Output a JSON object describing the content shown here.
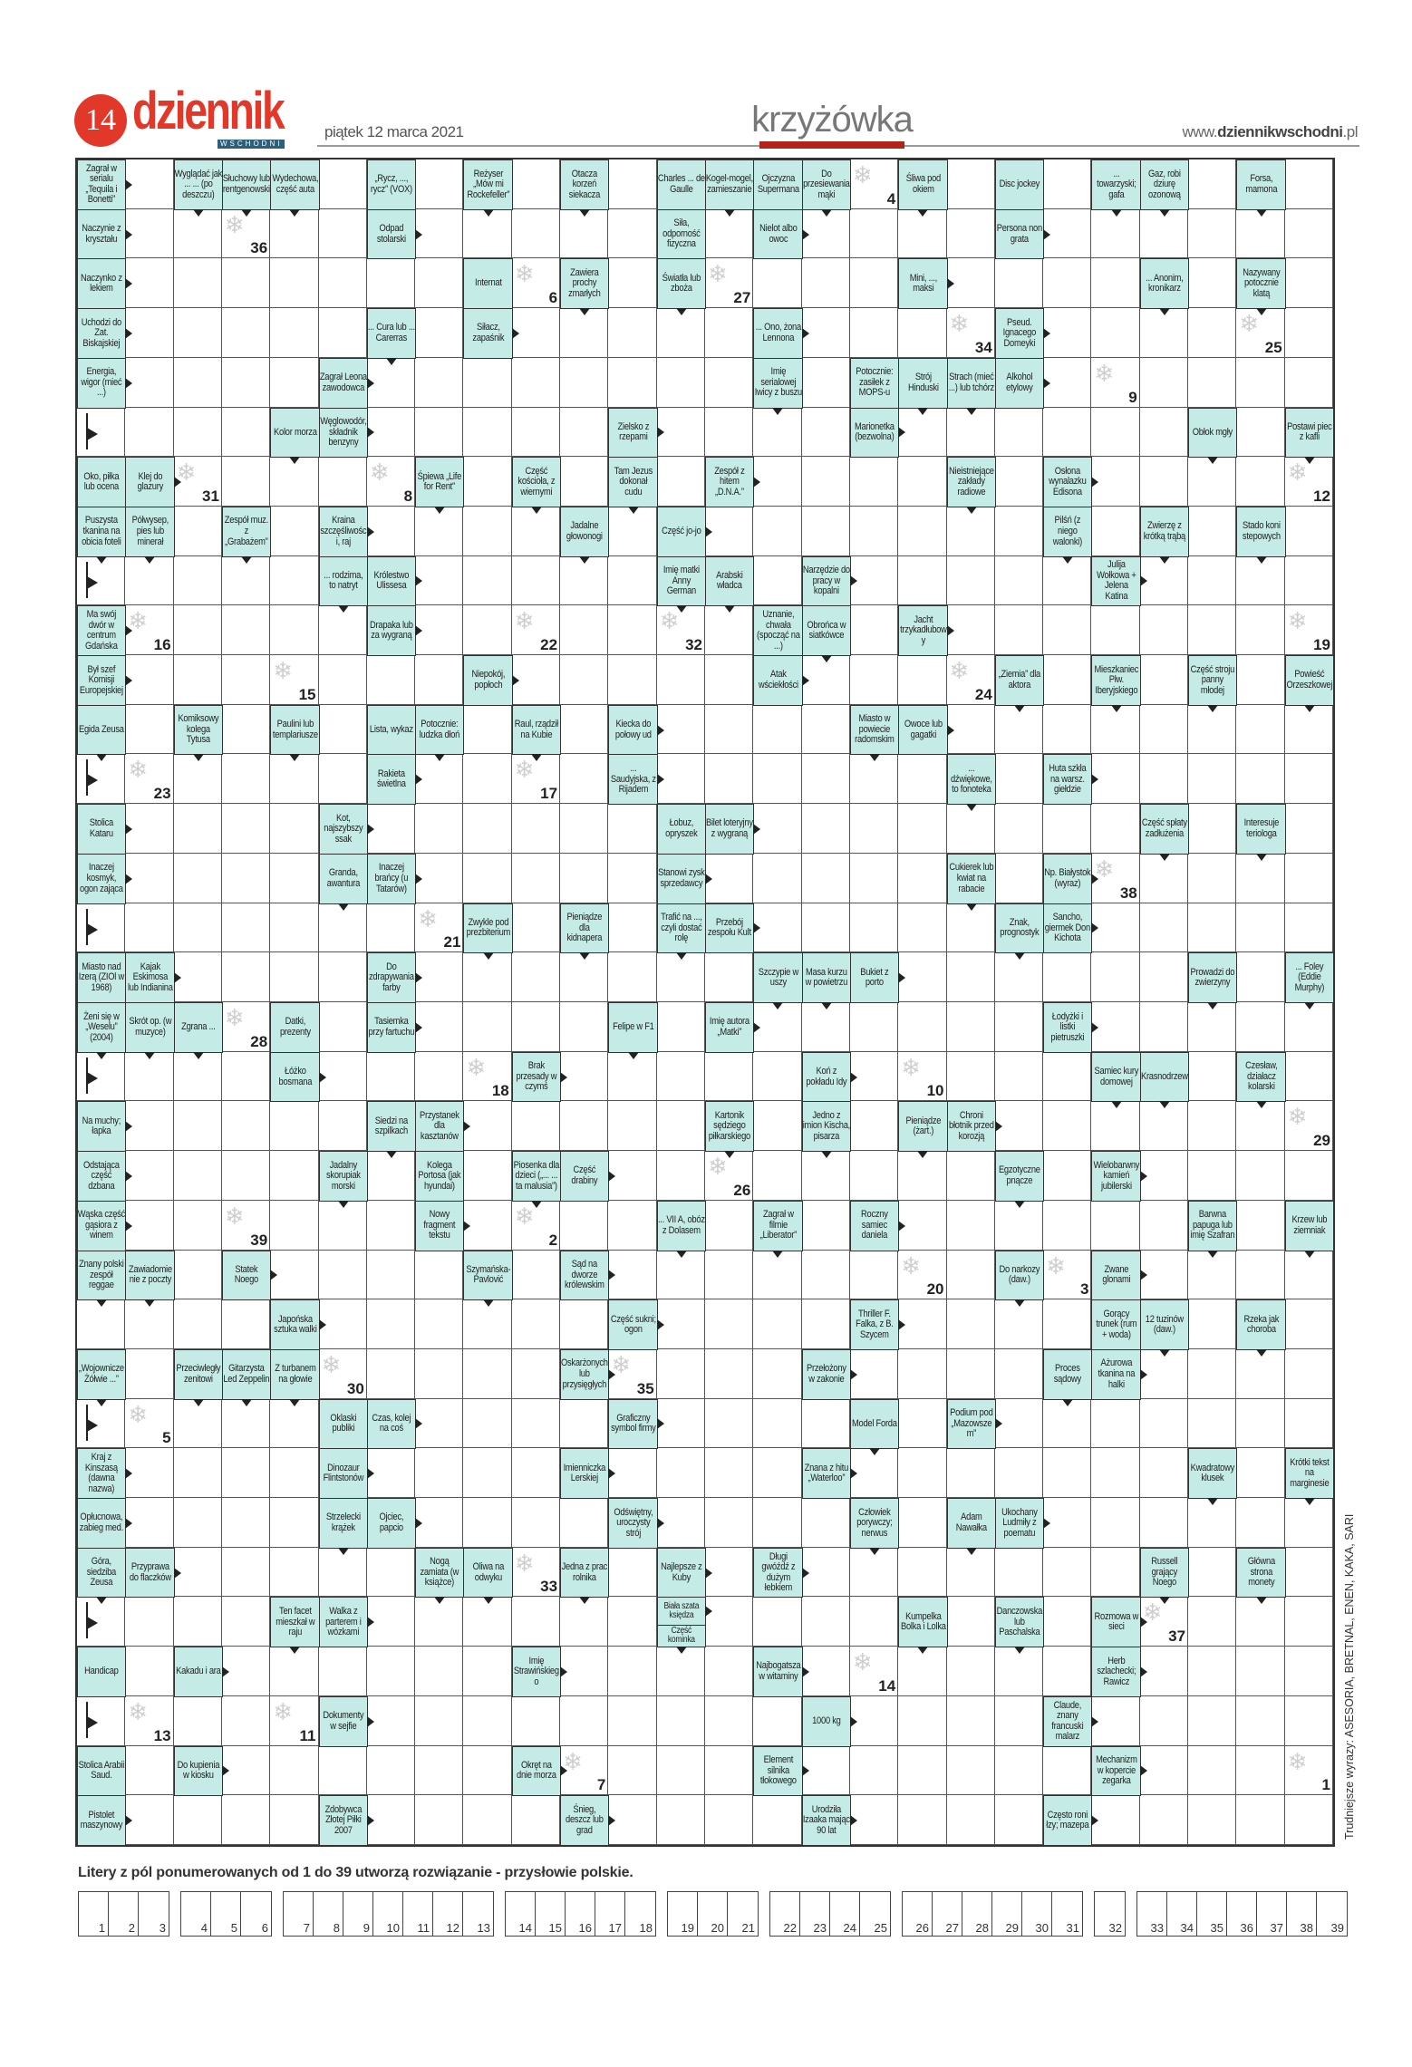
{
  "header": {
    "page_number": "14",
    "logo": "dziennik",
    "logo_sub": "WSCHODNI",
    "date": "piątek 12 marca 2021",
    "section": "krzyżówka",
    "site_prefix": "www.",
    "site_bold": "dziennikwschodni",
    "site_suffix": ".pl"
  },
  "colors": {
    "brand_red": "#e2382a",
    "clue_bg": "#c4ebe6",
    "section_bar": "#b3231c"
  },
  "crossword": {
    "clues": [
      "Zagrał w serialu „Tequila i Bonetti”",
      "Wyglądać jak ... ... (po deszczu)",
      "Słuchowy lub rentgenowski",
      "Wydechowa, część auta",
      "„Rycz, ..., rycz” (VOX)",
      "Reżyser „Mów mi Rockefeller”",
      "Otacza korzeń siekacza",
      "Charles ... de Gaulle",
      "Kogel-mogel, zamieszanie",
      "Ojczyzna Supermana",
      "Do przesiewania mąki",
      "Śliwa pod okiem",
      "Disc jockey",
      "... towarzyski; gafa",
      "Gaz, robi dziurę ozonową",
      "Forsa, mamona",
      "Naczynie z kryształu",
      "Odpad stolarski",
      "Siła, odporność fizyczna",
      "Nielot albo owoc",
      "Persona non grata",
      "Naczynko z lekiem",
      "Internat",
      "Zawiera prochy zmarłych",
      "Światła lub zboża",
      "Mini, ..., maksi",
      "... Anonim, kronikarz",
      "Nazywany potocznie klatą",
      "Uchodzi do Zat. Biskajskiej",
      "... Cura lub ... Carerras",
      "Siłacz, zapaśnik",
      "... Ono, żona Lennona",
      "Pseud. Ignacego Domeyki",
      "Energia, wigor (mieć ...)",
      "Zagrał Leona zawodowca",
      "Imię serialowej Iwicy z buszu",
      "Potocznie: zasiłek z MOPS-u",
      "Strój Hinduski",
      "Strach (mieć ...) lub tchórz",
      "Alkohol etylowy",
      "Kolor morza",
      "Węglowodór, składnik benzyny",
      "Zielsko z rzepami",
      "Marionetka (bezwolna)",
      "Obłok mgły",
      "Postawi piec z kafli",
      "Oko, piłka lub ocena",
      "Klej do glazury",
      "Śpiewa „Life for Rent”",
      "Część kościoła, z wiernymi",
      "Tam Jezus dokonał cudu",
      "Zespół z hitem „D.N.A.”",
      "Nieistniejące zakłady radiowe",
      "Osłona wynalazku Edisona",
      "Puszysta tkanina na obicia foteli",
      "Półwysep, pies lub minerał",
      "Zespół muz. z „Grabażem”",
      "Kraina szczęśliwości, raj",
      "Jadalne głowonogi",
      "Część jo-jo",
      "Pilśń (z niego walonki)",
      "Zwierzę z krótką trąbą",
      "Stado koni stepowych",
      "... rodzima, to natryt",
      "Królestwo Ulissesa",
      "Imię matki Anny German",
      "Arabski władca",
      "Narzędzie do pracy w kopalni",
      "Julija Wołkowa + Jelena Katina",
      "Ma swój dwór w centrum Gdańska",
      "Drapaka lub za wygraną",
      "Uznanie, chwała (spocząć na ...)",
      "Obrońca w siatkówce",
      "Jacht trzykadłubowy",
      "Był szef Komisji Europejskiej",
      "Niepokój, popłoch",
      "Atak wściekłości",
      "„Ziemia” dla aktora",
      "Mieszkaniec Płw. Iberyjskiego",
      "Część stroju panny młodej",
      "Powieść Orzeszkowej",
      "Egida Zeusa",
      "Komiksowy kolega Tytusa",
      "Paulini lub templariusze",
      "Lista, wykaz",
      "Potocznie: ludzka dłoń",
      "Raul, rządził na Kubie",
      "Kiecka do połowy ud",
      "Miasto w powiecie radomskim",
      "Owoce lub gagatki",
      "Rakieta świetlna",
      "... Saudyjska, z Rijadem",
      "... dźwiękowe, to fonoteka",
      "Huta szkła na warsz. giełdzie",
      "Stolica Kataru",
      "Kot, najszybszy ssak",
      "Łobuz, opryszek",
      "Bilet loteryjny z wygraną",
      "Część spłaty zadłużenia",
      "Interesuje teriologa",
      "Inaczej kosmyk, ogon zająca",
      "Granda, awantura",
      "Inaczej brańcy (u Tatarów)",
      "Stanowi zysk sprzedawcy",
      "Cukierek lub kwiat na rabacie",
      "Np. Białystok (wyraz)",
      "Zwykle pod prezbiterium",
      "Pieniądze dla kidnapera",
      "Trafić na ..., czyli dostać rolę",
      "Przebój zespołu Kult",
      "Znak, prognostyk",
      "Sancho, giermek Don Kichota",
      "Miasto nad Izerą (ZIOl w 1968)",
      "Kajak Eskimosa lub Indianina",
      "Do zdrapywania farby",
      "Szczypie w uszy",
      "Masa kurzu w powietrzu",
      "Bukiet z porto",
      "Prowadzi do zwierzyny",
      "... Foley (Eddie Murphy)",
      "Żeni się w „Weselu” (2004)",
      "Skrót op. (w muzyce)",
      "Zgrana ...",
      "Datki, prezenty",
      "Tasiemka przy fartuchu",
      "Felipe w F1",
      "Imię autora „Matki”",
      "Łodyżki i listki pietruszki",
      "Łóżko bosmana",
      "Brak przesady w czymś",
      "Koń z pokładu Idy",
      "Samiec kury domowej",
      "Krasnodrzew",
      "Czesław, działacz kolarski",
      "Na muchy; łapka",
      "Siedzi na szpilkach",
      "Przystanek dla kasztanów",
      "Kartonik sędziego piłkarskiego",
      "Jedno z imion Kischa, pisarza",
      "Pieniądze (żart.)",
      "Chroni błotnik przed korozją",
      "Odstająca część dzbana",
      "Jadalny skorupiak morski",
      "Kolega Portosa (jak hyundai)",
      "Piosenka dla dzieci („... ... ta malusia”)",
      "Część drabiny",
      "Egzotyczne pnącze",
      "Wielobarwny kamień jubilerski",
      "Wąska część gąsiora z winem",
      "Nowy fragment tekstu",
      "... VII A, obóz z Dolasem",
      "Zagrał w filmie „Liberator”",
      "Roczny samiec daniela",
      "Barwna papuga lub imię Szafran",
      "Krzew lub ziemniak",
      "Znany polski zespół reggae",
      "Zawiadomienie z poczty",
      "Statek Noego",
      "Szymańska-Pavlović",
      "Sąd na dworze królewskim",
      "Do narkozy (daw.)",
      "Zwane glonami",
      "Japońska sztuka walki",
      "Część sukni; ogon",
      "Thriller F. Falka, z B. Szycem",
      "Gorący trunek (rum + woda)",
      "12 tuzinów (daw.)",
      "Rzeka jak choroba",
      "„Wojownicze Żółwie ...”",
      "Przeciwległy zenitowi",
      "Gitarzysta Led Zeppelin",
      "Z turbanem na głowie",
      "Oskarżonych lub przysięgłych",
      "Przełożony w zakonie",
      "Proces sądowy",
      "Ażurowa tkanina na halki",
      "Oklaski publiki",
      "Czas, kolej na coś",
      "Graficzny symbol firmy",
      "Model Forda",
      "Podium pod „Mazowszem”",
      "Kraj z Kinszasą (dawna nazwa)",
      "Dinozaur Flintstonów",
      "Imienniczka Lerskiej",
      "Znana z hitu „Waterloo”",
      "Kwadratowy klusek",
      "Krótki tekst na marginesie",
      "Opłucnowa, zabieg med.",
      "Strzelecki krążek",
      "Ojciec, papcio",
      "Odświętny, uroczysty strój",
      "Człowiek porywczy; nerwus",
      "Adam Nawałka",
      "Ukochany Ludmiły z poematu",
      "Góra, siedziba Zeusa",
      "Przyprawa do flaczków",
      "Nogą zamiata (w książce)",
      "Oliwa na odwyku",
      "Jedna z prac rolnika",
      "Najlepsze z Kuby",
      "Długi gwóźdź z dużym łebkiem",
      "Russell grający Noego",
      "Główna strona monety",
      "Ten facet mieszkał w raju",
      "Walka z parterem i wózkami",
      "Biała szata księdza",
      "Część kominka",
      "Kumpelka Bolka i Lolka",
      "Danczowska lub Paschalska",
      "Rozmowa w sieci",
      "Handicap",
      "Kakadu i ara",
      "Imię Strawińskiego",
      "Najbogatsza w witaminy",
      "Herb szlachecki; Rawicz",
      "Dokumenty w sejfie",
      "1000 kg",
      "Claude, znany francuski malarz",
      "Stolica Arabii Saud.",
      "Do kupienia w kiosku",
      "Okręt na dnie morza",
      "Element silnika tłokowego",
      "Mechanizm w kopercie zegarka",
      "Pistolet maszynowy",
      "Zdobywca Złotej Piłki 2007",
      "Śnieg, deszcz lub grad",
      "Urodziła Izaaka mając 90 lat",
      "Często roni łzy; mazepa"
    ],
    "numbered_fields": [
      "4",
      "36",
      "6",
      "27",
      "34",
      "25",
      "9",
      "31",
      "8",
      "12",
      "16",
      "22",
      "32",
      "19",
      "15",
      "24",
      "23",
      "17",
      "38",
      "21",
      "28",
      "18",
      "10",
      "29",
      "26",
      "39",
      "2",
      "20",
      "3",
      "30",
      "35",
      "5",
      "33",
      "37",
      "14",
      "13",
      "11",
      "7",
      "1"
    ],
    "numbered_field_icon": "snowflake-icon",
    "side_note": "Trudniejsze wyrazy: ASESORIA, BRETNAL, ENEN, KAKA, SARI"
  },
  "solution": {
    "instruction": "Litery z pól ponumerowanych od 1 do 39 utworzą rozwiązanie - przysłowie polskie.",
    "groups": [
      [
        "1",
        "2",
        "3"
      ],
      [
        "4",
        "5",
        "6"
      ],
      [
        "7",
        "8",
        "9",
        "10",
        "11",
        "12",
        "13"
      ],
      [
        "14",
        "15",
        "16",
        "17",
        "18"
      ],
      [
        "19",
        "20",
        "21"
      ],
      [
        "22",
        "23",
        "24",
        "25"
      ],
      [
        "26",
        "27",
        "28",
        "29",
        "30",
        "31"
      ],
      [
        "32"
      ],
      [
        "33",
        "34",
        "35",
        "36",
        "37",
        "38",
        "39"
      ]
    ]
  }
}
